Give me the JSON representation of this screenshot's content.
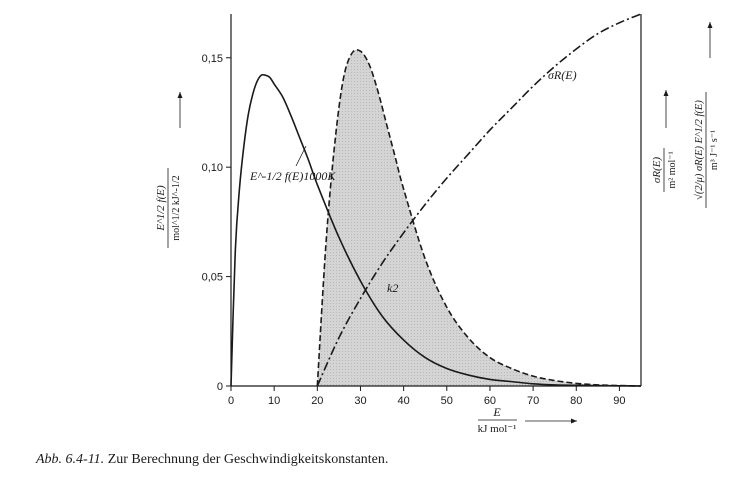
{
  "chart_data": {
    "type": "line",
    "x": {
      "label": "E",
      "unit": "kJ mol⁻¹",
      "ticks": [
        "0",
        "10",
        "20",
        "30",
        "40",
        "50",
        "60",
        "70",
        "80",
        "90"
      ],
      "range": [
        0,
        95
      ]
    },
    "y_left": {
      "label_num": "E^1/2 f(E)",
      "label_den": "mol^1/2 kJ^-1/2",
      "ticks": [
        "0",
        "0,05",
        "0,10",
        "0,15"
      ],
      "range": [
        0,
        0.17
      ]
    },
    "y_right": {
      "label1_num": "σR(E)",
      "label1_den": "m² mol⁻¹",
      "label2_num": "√(2/μ) σR(E) E^1/2 f(E)",
      "label2_den": "m³ J⁻¹ s⁻¹"
    },
    "annotations": {
      "dist": "E^-1/2 f(E)1000K",
      "cross": "σR(E)",
      "rate": "k2"
    },
    "series": [
      {
        "name": "E^-1/2 f(E)1000K",
        "style": "solid",
        "x": [
          0,
          1,
          2,
          3,
          4,
          5,
          6,
          7,
          8,
          9,
          10,
          12,
          14,
          16,
          18,
          20,
          25,
          30,
          35,
          40,
          45,
          50,
          55,
          60,
          65,
          70,
          75,
          80,
          85,
          90,
          95
        ],
        "y": [
          0,
          0.062,
          0.091,
          0.11,
          0.124,
          0.133,
          0.139,
          0.142,
          0.142,
          0.141,
          0.138,
          0.132,
          0.123,
          0.113,
          0.103,
          0.092,
          0.068,
          0.048,
          0.032,
          0.021,
          0.013,
          0.008,
          0.005,
          0.003,
          0.002,
          0.001,
          0.0005,
          0.0003,
          0.0002,
          0.0001,
          0
        ]
      },
      {
        "name": "σR(E)",
        "style": "dash-dot",
        "x": [
          20,
          25,
          30,
          35,
          40,
          45,
          50,
          55,
          60,
          65,
          70,
          75,
          80,
          85,
          90,
          95
        ],
        "y": [
          0,
          0.022,
          0.04,
          0.056,
          0.07,
          0.083,
          0.095,
          0.106,
          0.117,
          0.127,
          0.137,
          0.146,
          0.154,
          0.161,
          0.166,
          0.17
        ]
      },
      {
        "name": "k2",
        "style": "dashed",
        "filled": true,
        "x": [
          20,
          22,
          24,
          26,
          28,
          30,
          32,
          34,
          36,
          38,
          40,
          45,
          50,
          55,
          60,
          65,
          70,
          75,
          80,
          85,
          90,
          95
        ],
        "y": [
          0,
          0.065,
          0.11,
          0.14,
          0.152,
          0.153,
          0.147,
          0.135,
          0.12,
          0.105,
          0.09,
          0.058,
          0.036,
          0.022,
          0.013,
          0.008,
          0.0045,
          0.0025,
          0.0012,
          0.0005,
          0.0002,
          0
        ]
      }
    ]
  },
  "caption": {
    "ref": "Abb. 6.4-11.",
    "text": "Zur Berechnung der Geschwindigkeitskonstanten."
  }
}
